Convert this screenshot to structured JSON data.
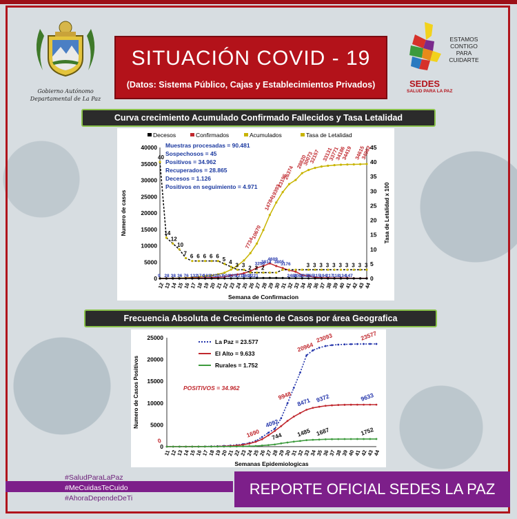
{
  "header": {
    "title": "SITUACIÓN  COVID - 19",
    "subtitle": "(Datos: Sistema Público, Cajas y Establecimientos Privados)",
    "left_logo_caption_1": "Gobierno Autónomo",
    "left_logo_caption_2": "Departamental de La Paz",
    "right_logo_slogan": [
      "ESTAMOS",
      "CONTIGO",
      "PARA",
      "CUIDARTE"
    ],
    "right_logo_name": "SEDES",
    "right_logo_sub": "SALUD PARA LA PAZ"
  },
  "colors": {
    "red": "#b3121a",
    "purple": "#7d1f8a",
    "green_border": "#8ac24a",
    "la_paz": "#2233aa",
    "el_alto": "#c0282e",
    "rurales": "#3c9a3c",
    "olive": "#c8b400"
  },
  "chart_data": [
    {
      "type": "line",
      "banner": "Curva crecimiento Acumulado Confirmado Fallecidos y Tasa Letalidad",
      "legend": [
        "Decesos",
        "Confirmados",
        "Acumulados",
        "Tasa de Letalidad"
      ],
      "xlabel": "Semana de Confirmacion",
      "ylabel": "Numero de casos",
      "y2label": "Tasa de Letalidad x 100",
      "ylim": [
        0,
        40000
      ],
      "y2lim": [
        0,
        45
      ],
      "yticks": [
        "40000",
        "35000",
        "30000",
        "25000",
        "20000",
        "15000",
        "10000",
        "5000",
        "0"
      ],
      "y2ticks": [
        "45",
        "40",
        "35",
        "30",
        "25",
        "20",
        "15",
        "10",
        "5",
        "0"
      ],
      "x": [
        12,
        13,
        14,
        15,
        16,
        17,
        18,
        19,
        20,
        21,
        22,
        23,
        24,
        25,
        26,
        27,
        28,
        29,
        30,
        31,
        32,
        33,
        34,
        35,
        36,
        37,
        38,
        39,
        40,
        41,
        42,
        43,
        44
      ],
      "info_box": [
        "Muestras procesadas = 90.481",
        "Sospechosos  = 45",
        "Positivos = 34.962",
        "Recuperados = 28.865",
        "Decesos = 1.126",
        "Positivos en seguimiento = 4.971"
      ],
      "series": [
        {
          "name": "Acumulados",
          "values": [
            9,
            37,
            75,
            111,
            187,
            319,
            493,
            676,
            918,
            1275,
            1776,
            2701,
            3912,
            5513,
            7734,
            10670,
            14784,
            19393,
            23196,
            26374,
            28820,
            30073,
            32157,
            33131,
            33771,
            34186,
            34419,
            34615,
            34732,
            34805,
            34850,
            34897,
            34962
          ]
        },
        {
          "name": "Confirmados",
          "values": [
            9,
            28,
            38,
            36,
            76,
            132,
            174,
            183,
            242,
            357,
            501,
            925,
            1211,
            1601,
            2221,
            3256,
            3814,
            4609,
            3805,
            3176,
            2486,
            2080,
            1039,
            765,
            315,
            194,
            217,
            118,
            134,
            147,
            45,
            47,
            65
          ]
        },
        {
          "name": "Decesos",
          "values": [
            0,
            0,
            0,
            1,
            1,
            2,
            4,
            6,
            8,
            10,
            15,
            25,
            40,
            60,
            90,
            120,
            150,
            170,
            160,
            140,
            110,
            90,
            60,
            40,
            25,
            15,
            10,
            8,
            6,
            5,
            4,
            3,
            2
          ]
        },
        {
          "name": "Tasa de Letalidad",
          "values": [
            40,
            14,
            12,
            10,
            7,
            6,
            6,
            6,
            6,
            6,
            5,
            4,
            3,
            3,
            2,
            2,
            2,
            2,
            2,
            3,
            3,
            3,
            3,
            3,
            3,
            3,
            3,
            3,
            3,
            3,
            3,
            3,
            3
          ]
        }
      ],
      "point_labels": {
        "acumulados": [
          "7734",
          "10670",
          "14784",
          "19393",
          "23196",
          "26374",
          "28820",
          "30073",
          "32157",
          "33131",
          "33771",
          "34186",
          "34419",
          "34615",
          "34962"
        ],
        "tasa": [
          "40",
          "14",
          "12",
          "10",
          "7",
          "6",
          "6",
          "6",
          "6",
          "6",
          "5",
          "4",
          "3",
          "3",
          "2",
          "2",
          "2",
          "3",
          "3",
          "3",
          "3",
          "3",
          "3",
          "3",
          "3",
          "3",
          "3"
        ],
        "confirmados": [
          "9",
          "28",
          "38",
          "36",
          "76",
          "132",
          "174",
          "183",
          "242",
          "357",
          "501",
          "925",
          "1211",
          "1601",
          "2221",
          "3256",
          "3814",
          "4609",
          "3805",
          "3176",
          "2486",
          "2080",
          "1039",
          "765",
          "315",
          "194",
          "217",
          "118",
          "134",
          "147"
        ]
      }
    },
    {
      "type": "line",
      "banner": "Frecuencia Absoluta de Crecimiento de Casos por área Geografica",
      "xlabel": "Semanas Epidemiologicas",
      "ylabel": "Numero de Casos Positivos",
      "ylim": [
        0,
        25000
      ],
      "yticks": [
        "25000",
        "20000",
        "15000",
        "10000",
        "5000",
        "0"
      ],
      "x": [
        11,
        12,
        13,
        14,
        15,
        16,
        17,
        18,
        19,
        20,
        21,
        22,
        23,
        24,
        25,
        26,
        27,
        28,
        29,
        30,
        31,
        32,
        33,
        34,
        35,
        36,
        37,
        38,
        39,
        40,
        41,
        42,
        43,
        44
      ],
      "positivos_note": "POSITIVOS = 34.962",
      "series": [
        {
          "name": "La Paz = 23.577",
          "values": [
            0,
            0,
            2,
            5,
            10,
            20,
            40,
            70,
            110,
            170,
            250,
            380,
            560,
            850,
            1300,
            2200,
            3200,
            4092,
            6500,
            9948,
            13500,
            17000,
            20964,
            22100,
            22700,
            23093,
            23300,
            23420,
            23480,
            23520,
            23550,
            23570,
            23577,
            23577
          ]
        },
        {
          "name": "El Alto = 9.633",
          "values": [
            0,
            0,
            0,
            2,
            5,
            10,
            20,
            40,
            60,
            100,
            150,
            260,
            420,
            700,
            1100,
            1690,
            2600,
            3600,
            4700,
            5900,
            6900,
            7700,
            8471,
            8900,
            9150,
            9372,
            9480,
            9560,
            9600,
            9620,
            9630,
            9632,
            9633,
            9633
          ]
        },
        {
          "name": "Rurales = 1.752",
          "values": [
            0,
            0,
            0,
            0,
            1,
            2,
            4,
            8,
            12,
            20,
            30,
            45,
            70,
            110,
            160,
            250,
            360,
            500,
            744,
            950,
            1150,
            1300,
            1485,
            1560,
            1620,
            1687,
            1710,
            1725,
            1735,
            1742,
            1748,
            1750,
            1752,
            1752
          ]
        }
      ],
      "value_labels": [
        {
          "text": "0",
          "series": "El Alto"
        },
        {
          "text": "1690",
          "series": "El Alto"
        },
        {
          "text": "9948",
          "series": "El Alto"
        },
        {
          "text": "20964",
          "series": "El Alto"
        },
        {
          "text": "23093",
          "series": "El Alto"
        },
        {
          "text": "23577",
          "series": "El Alto"
        },
        {
          "text": "4092",
          "series": "La Paz"
        },
        {
          "text": "8471",
          "series": "La Paz"
        },
        {
          "text": "9372",
          "series": "La Paz"
        },
        {
          "text": "9633",
          "series": "La Paz"
        },
        {
          "text": "744",
          "series": "Rurales"
        },
        {
          "text": "1485",
          "series": "Rurales"
        },
        {
          "text": "1687",
          "series": "Rurales"
        },
        {
          "text": "1752",
          "series": "Rurales"
        }
      ]
    }
  ],
  "footer": {
    "hashtags": [
      "#SaludParaLaPaz",
      "#MeCuidasTeCuido",
      "#AhoraDependeDeTi"
    ],
    "report": "REPORTE OFICIAL SEDES LA PAZ"
  }
}
